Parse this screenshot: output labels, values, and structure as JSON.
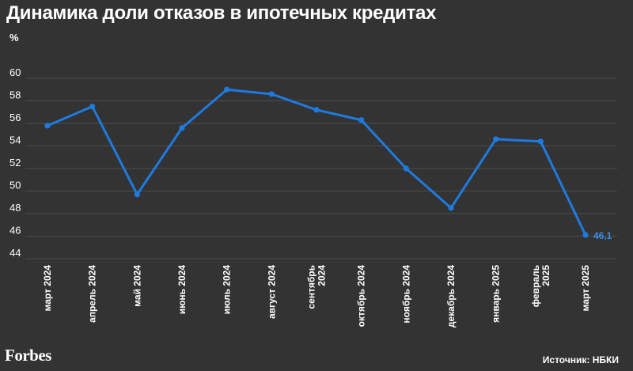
{
  "title": "Динамика доли отказов в ипотечных кредитах",
  "unit": "%",
  "logo": "Forbes",
  "source": "Источник: НБКИ",
  "chart_data": {
    "type": "line",
    "title": "Динамика доли отказов в ипотечных кредитах",
    "ylabel": "%",
    "xlabel": "",
    "categories": [
      [
        "март 2024"
      ],
      [
        "апрель 2024"
      ],
      [
        "май 2024"
      ],
      [
        "июнь 2024"
      ],
      [
        "июль 2024"
      ],
      [
        "август 2024"
      ],
      [
        "сентябрь",
        "2024"
      ],
      [
        "октябрь 2024"
      ],
      [
        "ноябрь 2024"
      ],
      [
        "декабрь 2024"
      ],
      [
        "январь 2025"
      ],
      [
        "февраль",
        "2025"
      ],
      [
        "март 2025"
      ]
    ],
    "series": [
      {
        "values": [
          55.8,
          57.5,
          49.7,
          55.6,
          59.0,
          58.6,
          57.2,
          56.3,
          52.0,
          48.5,
          54.6,
          54.4,
          46.1
        ],
        "color": "#1f7ae0"
      }
    ],
    "yticks": [
      44,
      46,
      48,
      50,
      52,
      54,
      56,
      58,
      60
    ],
    "ylim": [
      44,
      60
    ],
    "grid": true,
    "annotations": [
      {
        "index": 12,
        "text": "46,1"
      }
    ]
  }
}
